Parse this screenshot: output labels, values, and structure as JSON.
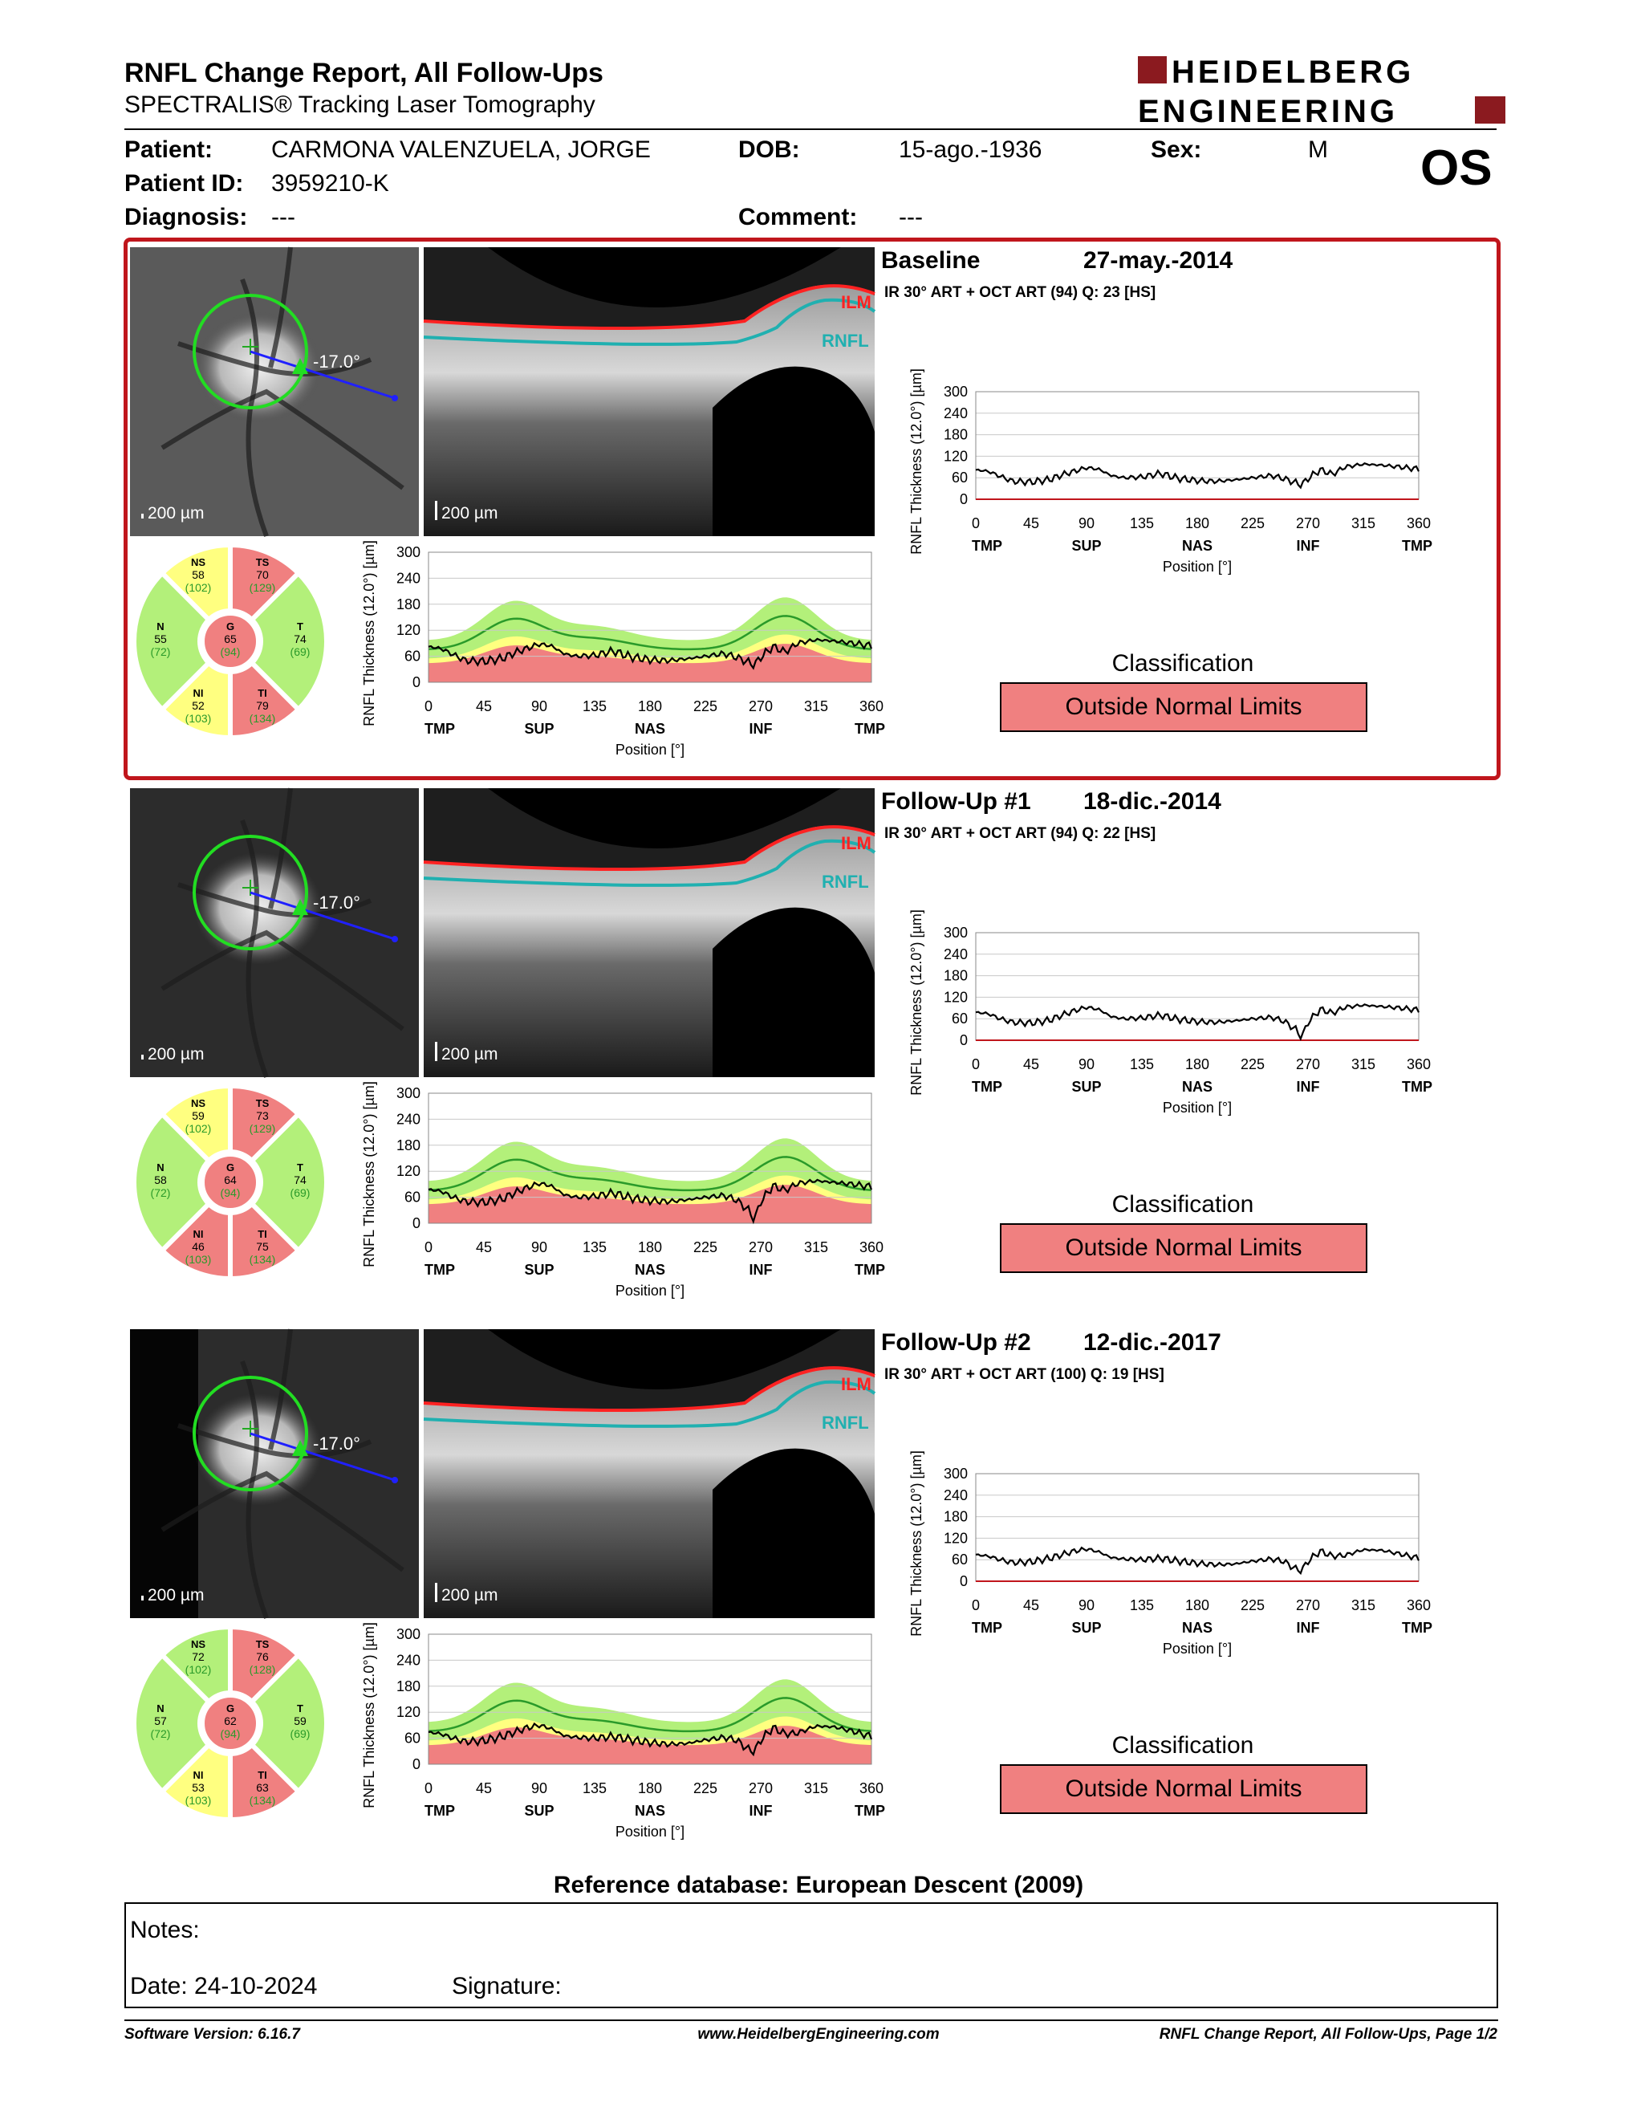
{
  "report": {
    "title": "RNFL Change Report, All Follow-Ups",
    "subtitle": "SPECTRALIS® Tracking Laser Tomography",
    "logo_line1": "HEIDELBERG",
    "logo_line2": "ENGINEERING",
    "eye": "OS"
  },
  "patient": {
    "name_label": "Patient:",
    "name": "CARMONA VALENZUELA, JORGE",
    "id_label": "Patient ID:",
    "id": "3959210-K",
    "diagnosis_label": "Diagnosis:",
    "diagnosis": "---",
    "dob_label": "DOB:",
    "dob": "15-ago.-1936",
    "comment_label": "Comment:",
    "comment": "---",
    "sex_label": "Sex:",
    "sex": "M"
  },
  "common": {
    "ylabel": "RNFL Thickness (12.0°) [µm]",
    "xlabel": "Position [°]",
    "x_ticks": [
      "0",
      "45",
      "90",
      "135",
      "180",
      "225",
      "270",
      "315",
      "360"
    ],
    "y_ticks": [
      "0",
      "60",
      "120",
      "180",
      "240",
      "300"
    ],
    "region_labels": [
      "TMP",
      "SUP",
      "NAS",
      "INF",
      "TMP"
    ],
    "scale_label": "200 µm",
    "angle_label": "-17.0°",
    "ilm_label": "ILM",
    "rnfl_label": "RNFL",
    "classification_label": "Classification",
    "colors": {
      "outside": "#f08080",
      "borderline": "#ffff80",
      "normal": "#b3f07a",
      "frame": "#c0161c"
    }
  },
  "exams": [
    {
      "title": "Baseline",
      "date": "27-may.-2014",
      "subtitle": "IR 30° ART + OCT ART (94) Q: 23 [HS]",
      "classification": "Outside Normal Limits",
      "sectors": {
        "NS": {
          "name": "NS",
          "value": "58",
          "ref": "(102)"
        },
        "TS": {
          "name": "TS",
          "value": "70",
          "ref": "(129)"
        },
        "N": {
          "name": "N",
          "value": "55",
          "ref": "(72)"
        },
        "G": {
          "name": "G",
          "value": "65",
          "ref": "(94)"
        },
        "T": {
          "name": "T",
          "value": "74",
          "ref": "(69)"
        },
        "NI": {
          "name": "NI",
          "value": "52",
          "ref": "(103)"
        },
        "TI": {
          "name": "TI",
          "value": "79",
          "ref": "(134)"
        }
      }
    },
    {
      "title": "Follow-Up #1",
      "date": "18-dic.-2014",
      "subtitle": "IR 30° ART + OCT ART (94) Q: 22 [HS]",
      "classification": "Outside Normal Limits",
      "sectors": {
        "NS": {
          "name": "NS",
          "value": "59",
          "ref": "(102)"
        },
        "TS": {
          "name": "TS",
          "value": "73",
          "ref": "(129)"
        },
        "N": {
          "name": "N",
          "value": "58",
          "ref": "(72)"
        },
        "G": {
          "name": "G",
          "value": "64",
          "ref": "(94)"
        },
        "T": {
          "name": "T",
          "value": "74",
          "ref": "(69)"
        },
        "NI": {
          "name": "NI",
          "value": "46",
          "ref": "(103)"
        },
        "TI": {
          "name": "TI",
          "value": "75",
          "ref": "(134)"
        }
      }
    },
    {
      "title": "Follow-Up #2",
      "date": "12-dic.-2017",
      "subtitle": "IR 30° ART + OCT ART (100) Q: 19 [HS]",
      "classification": "Outside Normal Limits",
      "sectors": {
        "NS": {
          "name": "NS",
          "value": "72",
          "ref": "(102)"
        },
        "TS": {
          "name": "TS",
          "value": "76",
          "ref": "(128)"
        },
        "N": {
          "name": "N",
          "value": "57",
          "ref": "(72)"
        },
        "G": {
          "name": "G",
          "value": "62",
          "ref": "(94)"
        },
        "T": {
          "name": "T",
          "value": "59",
          "ref": "(69)"
        },
        "NI": {
          "name": "NI",
          "value": "53",
          "ref": "(103)"
        },
        "TI": {
          "name": "TI",
          "value": "63",
          "ref": "(134)"
        }
      }
    }
  ],
  "chart_data": [
    {
      "type": "line",
      "name": "baseline-thickness-profile",
      "xlim": [
        0,
        360
      ],
      "ylim": [
        0,
        300
      ],
      "x": [
        0,
        10,
        20,
        30,
        45,
        60,
        70,
        80,
        90,
        100,
        110,
        120,
        135,
        150,
        165,
        180,
        195,
        210,
        225,
        240,
        250,
        260,
        265,
        270,
        280,
        290,
        300,
        315,
        330,
        345,
        360
      ],
      "series": [
        {
          "values": [
            82,
            78,
            64,
            50,
            48,
            55,
            68,
            78,
            88,
            84,
            66,
            60,
            62,
            72,
            58,
            52,
            50,
            54,
            60,
            66,
            58,
            46,
            40,
            58,
            82,
            70,
            90,
            98,
            95,
            90,
            84
          ]
        }
      ]
    },
    {
      "type": "line",
      "name": "follow-up-1-thickness-profile",
      "xlim": [
        0,
        360
      ],
      "ylim": [
        0,
        300
      ],
      "x": [
        0,
        10,
        20,
        30,
        45,
        60,
        70,
        80,
        90,
        100,
        110,
        120,
        135,
        150,
        165,
        180,
        195,
        210,
        225,
        240,
        250,
        260,
        265,
        270,
        280,
        290,
        300,
        315,
        330,
        345,
        360
      ],
      "series": [
        {
          "values": [
            78,
            74,
            60,
            50,
            48,
            56,
            70,
            82,
            92,
            86,
            66,
            60,
            62,
            70,
            58,
            52,
            50,
            54,
            60,
            64,
            54,
            30,
            8,
            50,
            86,
            76,
            92,
            98,
            94,
            90,
            84
          ]
        }
      ]
    },
    {
      "type": "line",
      "name": "follow-up-2-thickness-profile",
      "xlim": [
        0,
        360
      ],
      "ylim": [
        0,
        300
      ],
      "x": [
        0,
        10,
        20,
        30,
        45,
        60,
        70,
        80,
        90,
        100,
        110,
        120,
        135,
        150,
        165,
        180,
        195,
        210,
        225,
        240,
        250,
        260,
        265,
        270,
        280,
        290,
        300,
        315,
        330,
        345,
        360
      ],
      "series": [
        {
          "values": [
            74,
            70,
            60,
            52,
            54,
            64,
            74,
            84,
            90,
            82,
            66,
            62,
            60,
            64,
            56,
            50,
            46,
            48,
            56,
            62,
            56,
            34,
            30,
            56,
            84,
            70,
            72,
            88,
            86,
            76,
            64
          ]
        }
      ]
    }
  ],
  "footer": {
    "reference": "Reference database: European Descent (2009)",
    "notes_label": "Notes:",
    "date_label": "Date: 24-10-2024",
    "signature_label": "Signature:",
    "software": "Software Version: 6.16.7",
    "website": "www.HeidelbergEngineering.com",
    "page": "RNFL Change Report, All Follow-Ups, Page 1/2"
  }
}
